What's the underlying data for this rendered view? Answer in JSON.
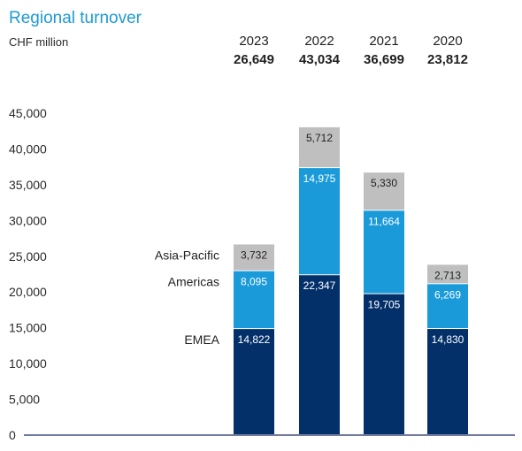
{
  "chart_data": {
    "type": "bar",
    "stacked": true,
    "title": "Regional turnover",
    "unit_label": "CHF million",
    "categories": [
      "2023",
      "2022",
      "2021",
      "2020"
    ],
    "totals": [
      "26,649",
      "43,034",
      "36,699",
      "23,812"
    ],
    "series": [
      {
        "name": "EMEA",
        "values": [
          14822,
          22347,
          19705,
          14830
        ],
        "labels": [
          "14,822",
          "22,347",
          "19,705",
          "14,830"
        ],
        "color": "#04306a",
        "label_color": "#ffffff"
      },
      {
        "name": "Americas",
        "values": [
          8095,
          14975,
          11664,
          6269
        ],
        "labels": [
          "8,095",
          "14,975",
          "11,664",
          "6,269"
        ],
        "color": "#1a9ad9",
        "label_color": "#ffffff"
      },
      {
        "name": "Asia-Pacific",
        "values": [
          3732,
          5712,
          5330,
          2713
        ],
        "labels": [
          "3,732",
          "5,712",
          "5,330",
          "2,713"
        ],
        "color": "#bfbfbf",
        "label_color": "#1f1f1f"
      }
    ],
    "ylim": [
      0,
      45000
    ],
    "yticks": [
      "0",
      "5,000",
      "10,000",
      "15,000",
      "20,000",
      "25,000",
      "30,000",
      "35,000",
      "40,000",
      "45,000"
    ],
    "grid": false,
    "legend": "inline-left-of-first-bar"
  }
}
